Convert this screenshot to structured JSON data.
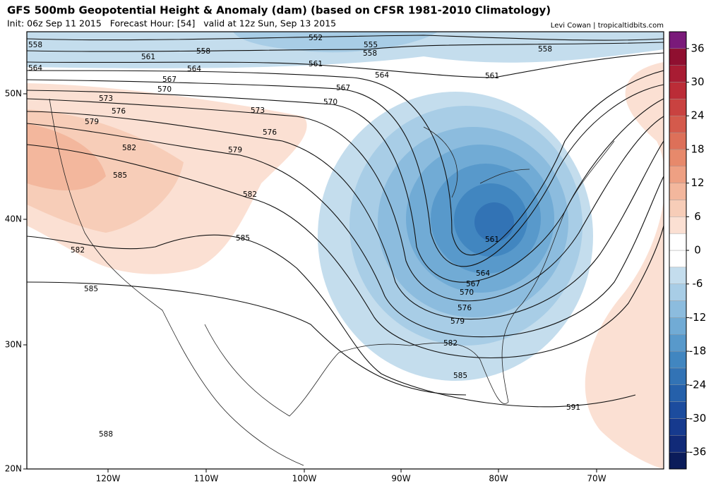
{
  "header": {
    "title": "GFS 500mb Geopotential Height & Anomaly (dam) (based on CFSR 1981-2010 Climatology)",
    "subtitle": "Init: 06z Sep 11 2015   Forecast Hour: [54]   valid at 12z Sun, Sep 13 2015",
    "credit": "Levi Cowan | tropicaltidbits.com"
  },
  "latitude_labels": [
    "50N",
    "40N",
    "30N",
    "20N"
  ],
  "longitude_labels": [
    "120W",
    "110W",
    "100W",
    "90W",
    "80W",
    "70W"
  ],
  "contour_labels": [
    552,
    555,
    558,
    558,
    558,
    558,
    561,
    561,
    561,
    561,
    564,
    564,
    564,
    564,
    567,
    567,
    567,
    570,
    570,
    570,
    573,
    573,
    576,
    576,
    576,
    579,
    579,
    579,
    582,
    582,
    582,
    582,
    585,
    585,
    585,
    585,
    588,
    591
  ],
  "colorbar": {
    "range": [
      -39,
      39
    ],
    "ticks": [
      36,
      30,
      24,
      18,
      12,
      6,
      0,
      -6,
      -12,
      -18,
      -24,
      -30,
      -36
    ],
    "colors": [
      "#0b1c5a",
      "#112a78",
      "#163a8e",
      "#1c4c9e",
      "#2560aa",
      "#3273b5",
      "#4186c0",
      "#5899cb",
      "#71abd5",
      "#8cbcde",
      "#a8cde6",
      "#c4dded",
      "#ffffff",
      "#ffffff",
      "#fbe0d3",
      "#f7cdb8",
      "#f3b79d",
      "#eea083",
      "#e7896b",
      "#dd7059",
      "#d45a4c",
      "#c94240",
      "#bb2c37",
      "#a81c33",
      "#8f0f30",
      "#7a1a7a"
    ]
  }
}
